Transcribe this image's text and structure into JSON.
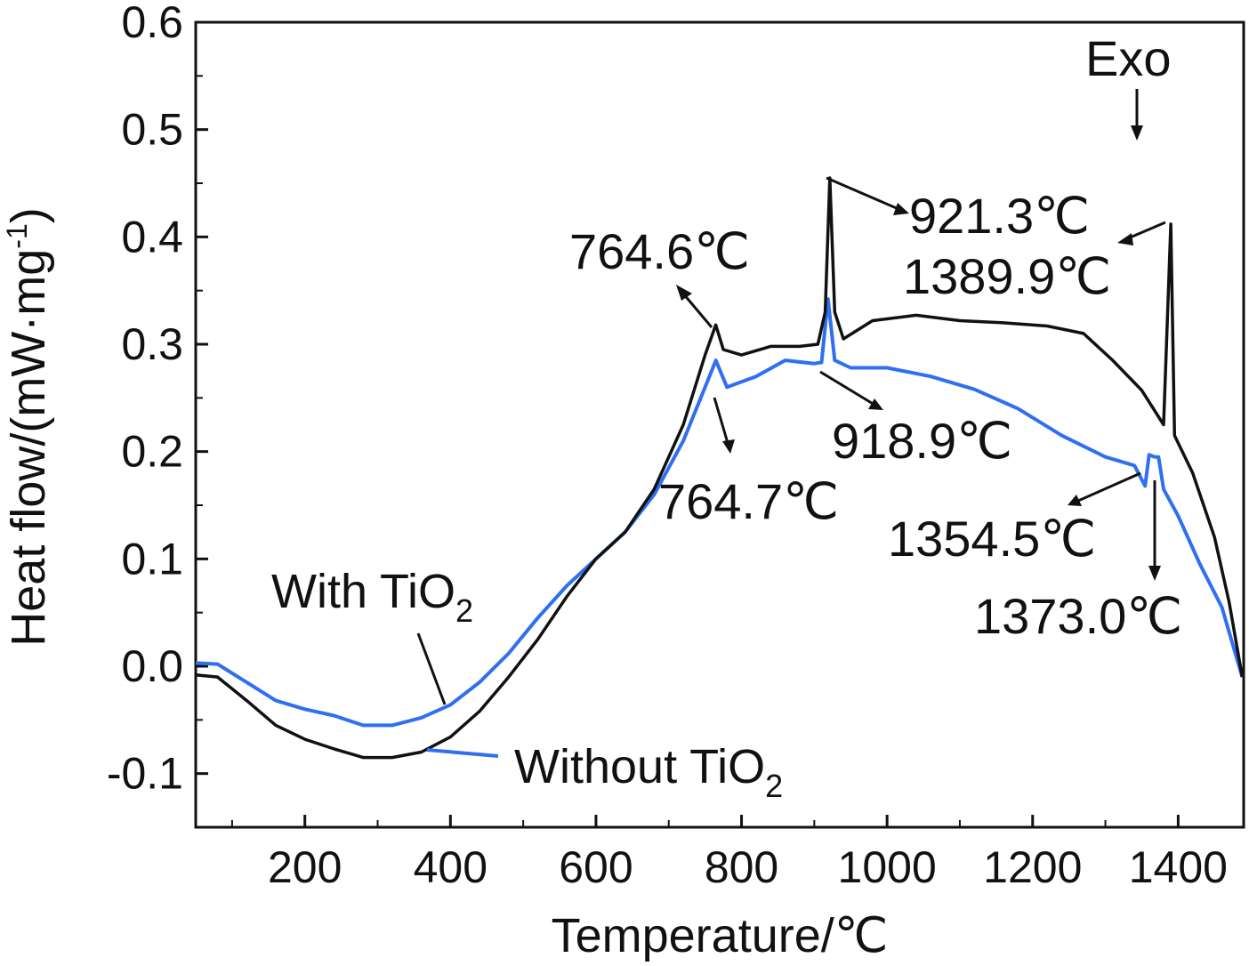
{
  "chart_data": {
    "type": "line",
    "title": "",
    "xlabel": "Temperature/℃",
    "ylabel": "Heat flow/(mW·mg",
    "ylabel_sup": "-1",
    "ylabel_end": ")",
    "xlim": [
      50,
      1490
    ],
    "ylim": [
      -0.15,
      0.6
    ],
    "x_ticks": [
      "200",
      "400",
      "600",
      "800",
      "1000",
      "1200",
      "1400"
    ],
    "y_ticks": [
      "-0.1",
      "0.0",
      "0.1",
      "0.2",
      "0.3",
      "0.4",
      "0.5",
      "0.6"
    ],
    "grid": false,
    "colors": {
      "with": "#111111",
      "without": "#2f6ff0",
      "axis": "#111111"
    },
    "series": [
      {
        "name": "With TiO2",
        "label_main": "With TiO",
        "label_sub": "2",
        "color": "#111111",
        "points": [
          [
            50,
            -0.008
          ],
          [
            80,
            -0.01
          ],
          [
            120,
            -0.032
          ],
          [
            160,
            -0.055
          ],
          [
            200,
            -0.068
          ],
          [
            240,
            -0.077
          ],
          [
            280,
            -0.085
          ],
          [
            320,
            -0.085
          ],
          [
            360,
            -0.08
          ],
          [
            400,
            -0.066
          ],
          [
            440,
            -0.042
          ],
          [
            480,
            -0.01
          ],
          [
            520,
            0.025
          ],
          [
            560,
            0.065
          ],
          [
            600,
            0.1
          ],
          [
            640,
            0.125
          ],
          [
            680,
            0.165
          ],
          [
            720,
            0.225
          ],
          [
            750,
            0.29
          ],
          [
            764.6,
            0.318
          ],
          [
            775,
            0.295
          ],
          [
            800,
            0.29
          ],
          [
            840,
            0.298
          ],
          [
            880,
            0.298
          ],
          [
            905,
            0.3
          ],
          [
            915,
            0.33
          ],
          [
            921.3,
            0.455
          ],
          [
            928,
            0.33
          ],
          [
            940,
            0.305
          ],
          [
            980,
            0.322
          ],
          [
            1040,
            0.327
          ],
          [
            1100,
            0.322
          ],
          [
            1160,
            0.32
          ],
          [
            1220,
            0.317
          ],
          [
            1270,
            0.31
          ],
          [
            1310,
            0.285
          ],
          [
            1350,
            0.257
          ],
          [
            1380,
            0.225
          ],
          [
            1389.9,
            0.412
          ],
          [
            1395,
            0.215
          ],
          [
            1420,
            0.18
          ],
          [
            1450,
            0.12
          ],
          [
            1470,
            0.06
          ],
          [
            1488,
            -0.01
          ]
        ]
      },
      {
        "name": "Without TiO2",
        "label_main": "Without TiO",
        "label_sub": "2",
        "color": "#2f6ff0",
        "points": [
          [
            50,
            0.003
          ],
          [
            80,
            0.002
          ],
          [
            120,
            -0.015
          ],
          [
            160,
            -0.032
          ],
          [
            200,
            -0.04
          ],
          [
            240,
            -0.046
          ],
          [
            280,
            -0.055
          ],
          [
            320,
            -0.055
          ],
          [
            360,
            -0.048
          ],
          [
            400,
            -0.036
          ],
          [
            440,
            -0.015
          ],
          [
            480,
            0.012
          ],
          [
            520,
            0.045
          ],
          [
            560,
            0.075
          ],
          [
            600,
            0.1
          ],
          [
            640,
            0.125
          ],
          [
            680,
            0.16
          ],
          [
            720,
            0.21
          ],
          [
            750,
            0.26
          ],
          [
            764.7,
            0.285
          ],
          [
            780,
            0.26
          ],
          [
            820,
            0.27
          ],
          [
            860,
            0.285
          ],
          [
            900,
            0.282
          ],
          [
            910,
            0.283
          ],
          [
            918.9,
            0.342
          ],
          [
            928,
            0.285
          ],
          [
            950,
            0.278
          ],
          [
            1000,
            0.278
          ],
          [
            1060,
            0.27
          ],
          [
            1120,
            0.258
          ],
          [
            1180,
            0.24
          ],
          [
            1240,
            0.215
          ],
          [
            1300,
            0.195
          ],
          [
            1340,
            0.187
          ],
          [
            1354.5,
            0.168
          ],
          [
            1360,
            0.197
          ],
          [
            1368,
            0.195
          ],
          [
            1373.0,
            0.195
          ],
          [
            1380,
            0.165
          ],
          [
            1400,
            0.14
          ],
          [
            1430,
            0.095
          ],
          [
            1460,
            0.055
          ],
          [
            1488,
            -0.01
          ]
        ]
      }
    ],
    "annotations": [
      {
        "text": "764.6℃"
      },
      {
        "text": "921.3℃"
      },
      {
        "text": "1389.9℃"
      },
      {
        "text": "918.9℃"
      },
      {
        "text": "764.7℃"
      },
      {
        "text": "1354.5℃"
      },
      {
        "text": "1373.0℃"
      },
      {
        "text": "Exo"
      }
    ]
  }
}
